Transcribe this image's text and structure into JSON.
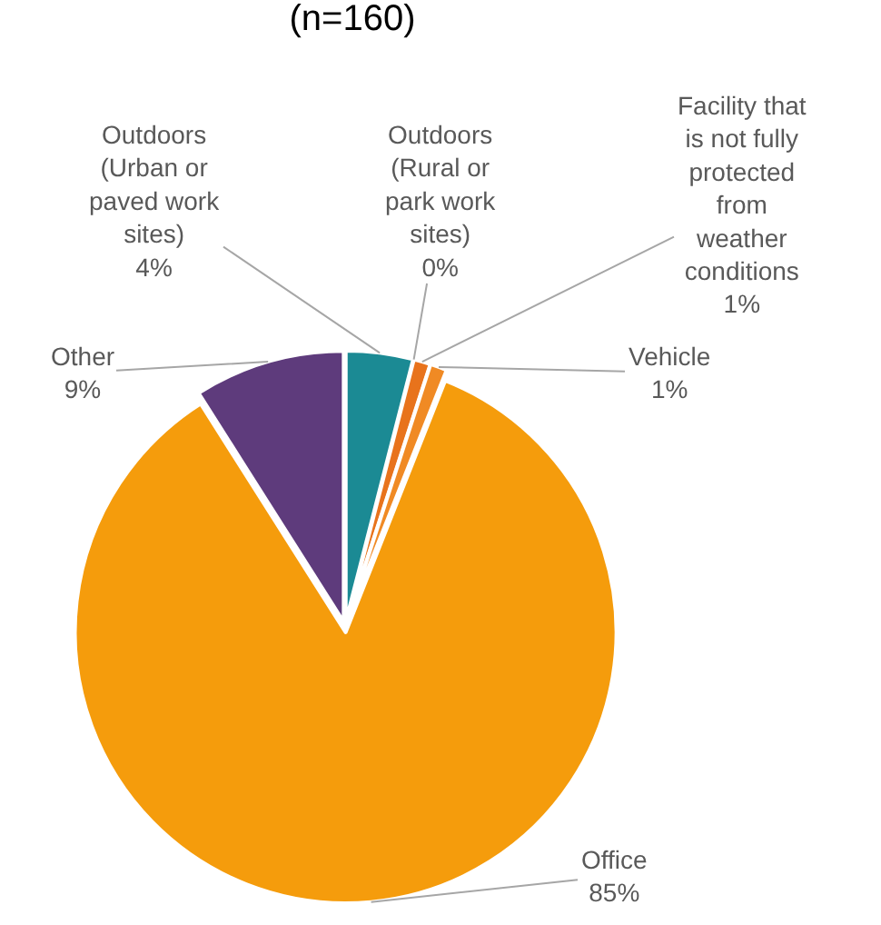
{
  "chart_data": {
    "type": "pie",
    "title": "(n=160)",
    "categories": [
      "Outdoors\n(Urban or\npaved work\nsites)",
      "Outdoors\n(Rural or\npark work\nsites)",
      "Facility that\nis not fully\nprotected\nfrom\nweather\nconditions",
      "Vehicle",
      "Office",
      "Other"
    ],
    "values": [
      4,
      0,
      1,
      1,
      85,
      9
    ],
    "value_labels": [
      "4%",
      "0%",
      "1%",
      "1%",
      "85%",
      "9%"
    ],
    "colors": [
      "#1b8a94",
      "#e0201b",
      "#e8731c",
      "#f08a24",
      "#f59c0c",
      "#5e3b7c"
    ],
    "legend": false
  }
}
